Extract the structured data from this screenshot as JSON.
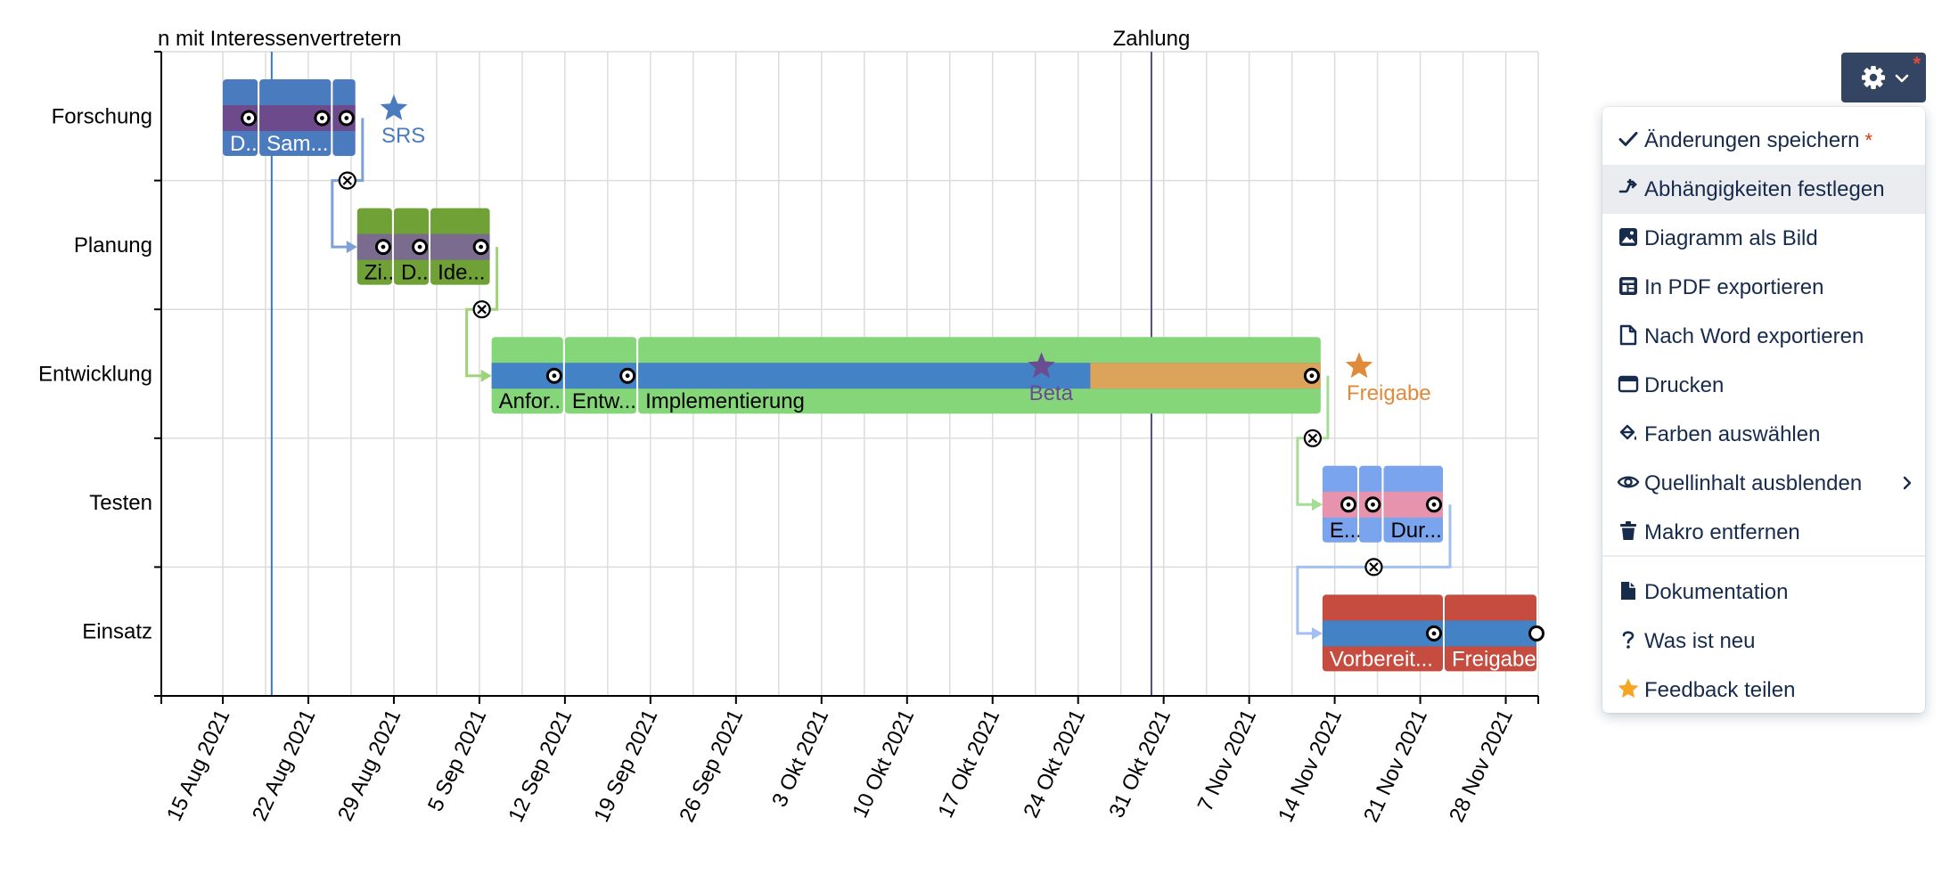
{
  "chart_data": {
    "type": "gantt",
    "milestone_lines": [
      {
        "label": "n mit Interessenvertretern",
        "date": "2021-08-19"
      },
      {
        "label": "Zahlung",
        "date": "2021-10-30"
      }
    ],
    "x_ticks": [
      "15 Aug 2021",
      "22 Aug 2021",
      "29 Aug 2021",
      "5 Sep 2021",
      "12 Sep 2021",
      "19 Sep 2021",
      "26 Sep 2021",
      "3 Okt 2021",
      "10 Okt 2021",
      "17 Okt 2021",
      "24 Okt 2021",
      "31 Okt 2021",
      "7 Nov 2021",
      "14 Nov 2021",
      "21 Nov 2021",
      "28 Nov 2021"
    ],
    "groups": [
      {
        "name": "Forschung",
        "color": "#4a7bbf",
        "bar_color": "#6c4a8c",
        "tasks": [
          {
            "label": "D..",
            "start": "2021-08-15",
            "end": "2021-08-18"
          },
          {
            "label": "Sam...",
            "start": "2021-08-18",
            "end": "2021-08-24"
          },
          {
            "label": "",
            "start": "2021-08-24",
            "end": "2021-08-26"
          }
        ],
        "milestones": [
          {
            "label": "SRS",
            "date": "2021-08-29",
            "color": "#4a7bbf"
          }
        ]
      },
      {
        "name": "Planung",
        "color": "#6fa136",
        "bar_color": "#7a6b8f",
        "tasks": [
          {
            "label": "Zi..",
            "start": "2021-08-26",
            "end": "2021-08-29"
          },
          {
            "label": "D..",
            "start": "2021-08-29",
            "end": "2021-09-01"
          },
          {
            "label": "Ide...",
            "start": "2021-09-01",
            "end": "2021-09-06"
          }
        ],
        "milestones": []
      },
      {
        "name": "Entwicklung",
        "color": "#85d679",
        "bar_color": "#4482c6",
        "tasks": [
          {
            "label": "Anfor..",
            "start": "2021-09-06",
            "end": "2021-09-12"
          },
          {
            "label": "Entw...",
            "start": "2021-09-12",
            "end": "2021-09-18"
          },
          {
            "label": "Implementierung",
            "start": "2021-09-18",
            "end": "2021-11-13",
            "split": "2021-10-25",
            "split_color": "#dca35b"
          }
        ],
        "milestones": [
          {
            "label": "Beta",
            "date": "2021-10-21",
            "color": "#6a4c93"
          },
          {
            "label": "Freigabe",
            "date": "2021-11-16",
            "color": "#e08a3a"
          }
        ]
      },
      {
        "name": "Testen",
        "color": "#7aa4ee",
        "bar_color": "#e893ad",
        "tasks": [
          {
            "label": "E...",
            "start": "2021-11-13",
            "end": "2021-11-16"
          },
          {
            "label": "",
            "start": "2021-11-16",
            "end": "2021-11-18"
          },
          {
            "label": "Dur...",
            "start": "2021-11-18",
            "end": "2021-11-23"
          }
        ],
        "milestones": []
      },
      {
        "name": "Einsatz",
        "color": "#c64c40",
        "bar_color": "#4482c6",
        "tasks": [
          {
            "label": "Vorbereit...",
            "start": "2021-11-13",
            "end": "2021-11-23"
          },
          {
            "label": "Freigabe",
            "start": "2021-11-23",
            "end": "2021-12-03"
          }
        ],
        "milestones": []
      }
    ],
    "dependencies": [
      {
        "from": "Forschung",
        "to": "Planung",
        "color": "#7fa0d6"
      },
      {
        "from": "Planung",
        "to": "Entwicklung",
        "color": "#9fd37a"
      },
      {
        "from": "Entwicklung",
        "to": "Testen",
        "color": "#a6dd96"
      },
      {
        "from": "Testen",
        "to": "Einsatz",
        "color": "#a3c0f0"
      }
    ]
  },
  "settings": {
    "gear_icon": "gear-icon",
    "chevron_icon": "chevron-down-icon",
    "notification_marker": "*"
  },
  "menu": {
    "items": [
      {
        "id": "save",
        "label": "Änderungen speichern",
        "icon": "check-icon",
        "marker": "*"
      },
      {
        "id": "dependencies",
        "label": "Abhängigkeiten festlegen",
        "icon": "dependency-icon",
        "highlighted": true
      },
      {
        "id": "image",
        "label": "Diagramm als Bild",
        "icon": "image-icon"
      },
      {
        "id": "pdf",
        "label": "In PDF exportieren",
        "icon": "pdf-icon"
      },
      {
        "id": "word",
        "label": "Nach Word exportieren",
        "icon": "document-icon"
      },
      {
        "id": "print",
        "label": "Drucken",
        "icon": "print-icon"
      },
      {
        "id": "colors",
        "label": "Farben auswählen",
        "icon": "paint-bucket-icon"
      },
      {
        "id": "hide-source",
        "label": "Quellinhalt ausblenden",
        "icon": "eye-icon",
        "submenu": true
      },
      {
        "id": "remove",
        "label": "Makro entfernen",
        "icon": "trash-icon"
      },
      {
        "id": "docs",
        "label": "Dokumentation",
        "icon": "page-icon"
      },
      {
        "id": "whats-new",
        "label": "Was ist neu",
        "icon": "question-icon"
      },
      {
        "id": "feedback",
        "label": "Feedback teilen",
        "icon": "star-icon"
      }
    ]
  }
}
